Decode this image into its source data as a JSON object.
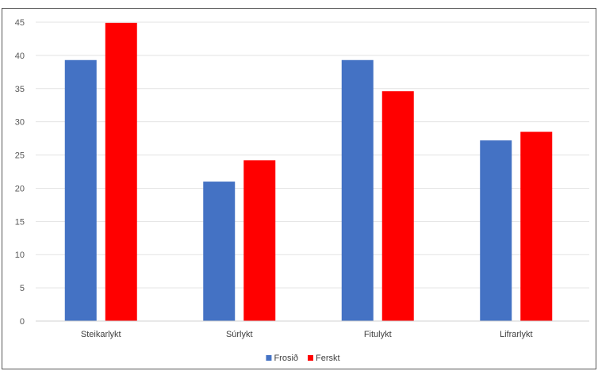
{
  "chart_data": {
    "type": "bar",
    "title": "",
    "xlabel": "",
    "ylabel": "",
    "categories": [
      "Steikarlykt",
      "Súrlykt",
      "Fitulykt",
      "Lifrarlykt"
    ],
    "series": [
      {
        "name": "Frosið",
        "color": "#4472c4",
        "values": [
          39.3,
          21.0,
          39.3,
          27.2
        ]
      },
      {
        "name": "Ferskt",
        "color": "#ff0000",
        "values": [
          44.9,
          24.2,
          34.6,
          28.5
        ]
      }
    ],
    "ylim": [
      0,
      45
    ],
    "yticks": [
      0,
      5,
      10,
      15,
      20,
      25,
      30,
      35,
      40,
      45
    ],
    "grid": true,
    "legend_position": "bottom"
  }
}
